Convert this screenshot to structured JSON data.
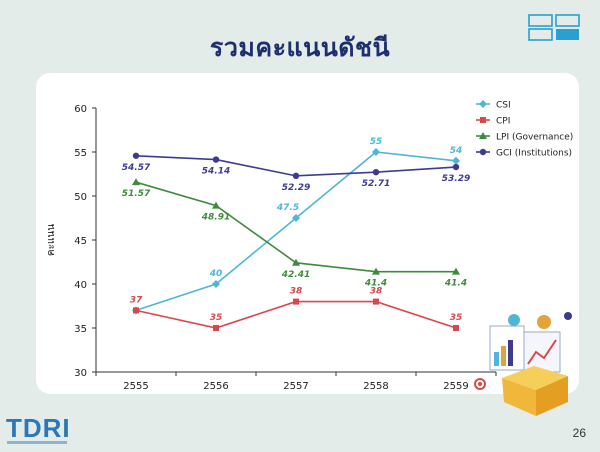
{
  "slide": {
    "title": "รวมคะแนนดัชนี",
    "page_number": "26",
    "logo": "TDRI"
  },
  "colors": {
    "CSI": "#4fb6d8",
    "CPI": "#d9474a",
    "LPI": "#3f8a3c",
    "GCI": "#3c3b8f",
    "title": "#1e2f6e"
  },
  "chart_data": {
    "type": "line",
    "categories": [
      "2555",
      "2556",
      "2557",
      "2558",
      "2559"
    ],
    "ylabel": "คะแนน",
    "ylim": [
      30,
      60
    ],
    "yticks": [
      30,
      35,
      40,
      45,
      50,
      55,
      60
    ],
    "legend_position": "top-right",
    "grid": false,
    "series": [
      {
        "key": "CSI",
        "name": "CSI",
        "marker": "diamond",
        "values": [
          37,
          40,
          47.5,
          55,
          54
        ],
        "labels": [
          "",
          "40",
          "47.5",
          "55",
          "54"
        ]
      },
      {
        "key": "CPI",
        "name": "CPI",
        "marker": "square",
        "values": [
          37,
          35,
          38,
          38,
          35
        ],
        "labels": [
          "37",
          "35",
          "38",
          "38",
          "35"
        ]
      },
      {
        "key": "LPI",
        "name": "LPI (Governance)",
        "marker": "triangle",
        "values": [
          51.57,
          48.91,
          42.41,
          41.4,
          41.4
        ],
        "labels": [
          "51.57",
          "48.91",
          "42.41",
          "41.4",
          "41.4"
        ]
      },
      {
        "key": "GCI",
        "name": "GCI (Institutions)",
        "marker": "circle",
        "values": [
          54.57,
          54.14,
          52.29,
          52.71,
          53.29
        ],
        "labels": [
          "54.57",
          "54.14",
          "52.29",
          "52.71",
          "53.29"
        ]
      }
    ]
  }
}
